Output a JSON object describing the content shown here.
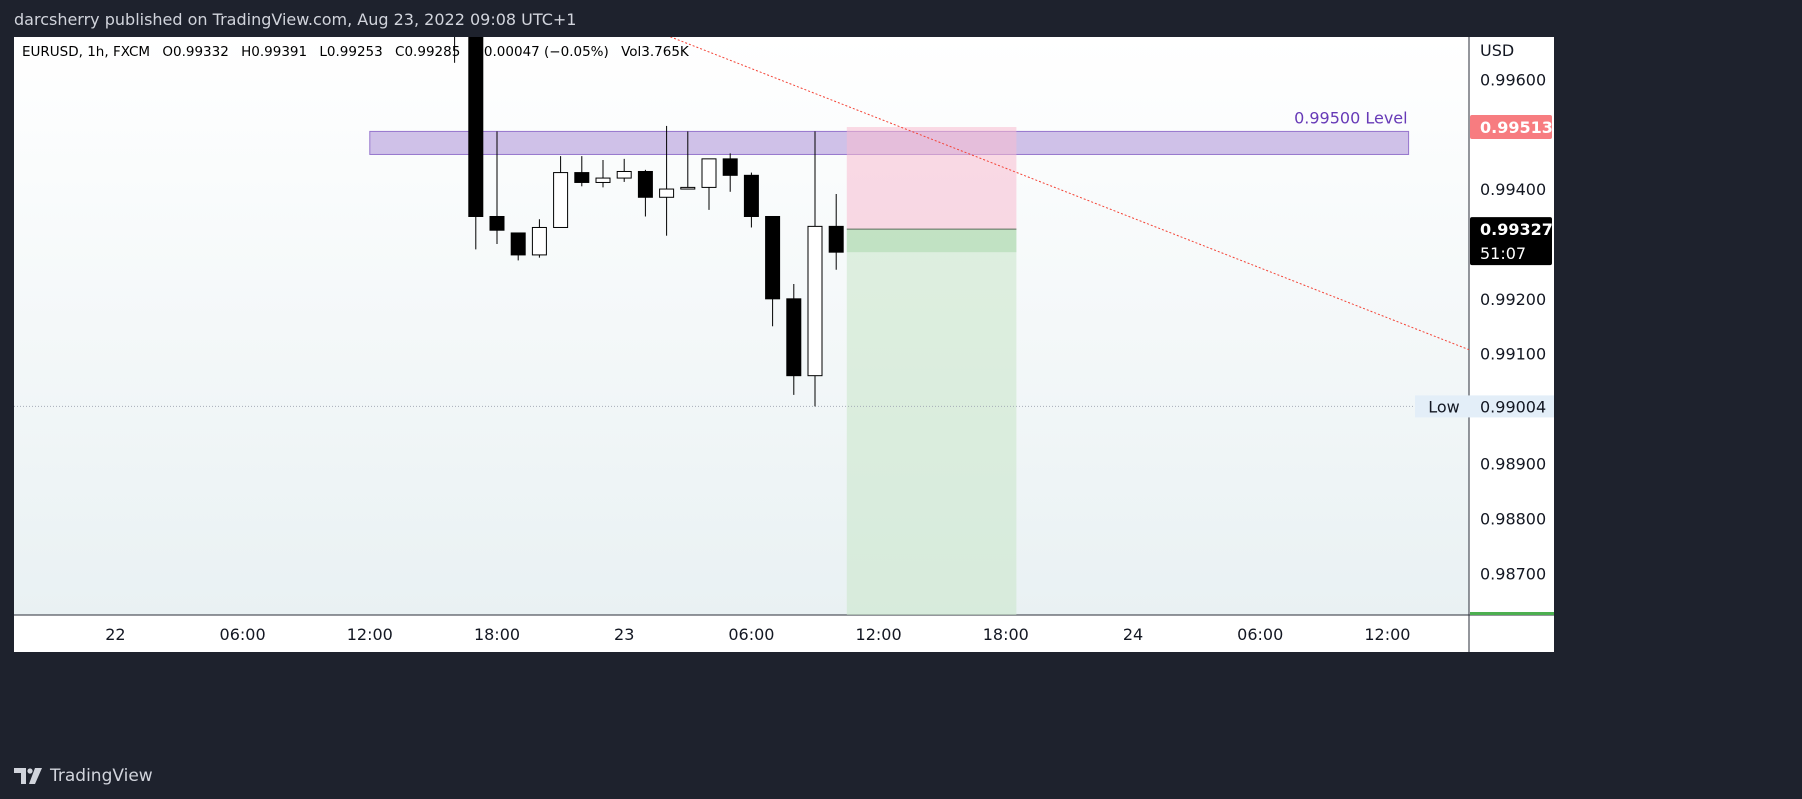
{
  "header": {
    "published_line": "darcsherry published on TradingView.com, Aug 23, 2022 09:08 UTC+1"
  },
  "footer": {
    "brand": "TradingView",
    "logo_icon": "tradingview-logo-icon"
  },
  "legend": {
    "symbol": "EURUSD, 1h, FXCM",
    "open": "O0.99332",
    "high": "H0.99391",
    "low": "L0.99253",
    "close": "C0.99285",
    "change": "−0.00047 (−0.05%)",
    "volume": "Vol3.765K"
  },
  "colors": {
    "background_dark": "#1e222d",
    "candle": "#000000",
    "level_zone": "#b39ddb",
    "level_text": "#673ab7",
    "stop_zone": "#f8bbd0",
    "target_zone": "#c8e6c9",
    "price_badge_red": "#f77c80",
    "price_badge_dark": "#000000",
    "trendline": "#f44336"
  },
  "chart_data": {
    "type": "candlestick",
    "symbol": "EURUSD",
    "interval": "1h",
    "currency": "USD",
    "ylim": [
      0.98624,
      0.99677
    ],
    "y_ticks": [
      "0.99600",
      "0.99400",
      "0.99200",
      "0.99100",
      "0.98900",
      "0.98800",
      "0.98700"
    ],
    "x_ticks": [
      {
        "label": "22",
        "t": -22
      },
      {
        "label": "06:00",
        "t": -16
      },
      {
        "label": "12:00",
        "t": -10
      },
      {
        "label": "18:00",
        "t": -4
      },
      {
        "label": "23",
        "t": 2
      },
      {
        "label": "06:00",
        "t": 8
      },
      {
        "label": "12:00",
        "t": 14
      },
      {
        "label": "18:00",
        "t": 20
      },
      {
        "label": "24",
        "t": 26
      },
      {
        "label": "06:00",
        "t": 32
      },
      {
        "label": "12:00",
        "t": 38
      }
    ],
    "candles": [
      {
        "t": -6,
        "o": 0.9972,
        "h": 0.99745,
        "l": 0.9963,
        "c": 0.9969
      },
      {
        "t": -5,
        "o": 0.9969,
        "h": 0.997,
        "l": 0.9929,
        "c": 0.9935
      },
      {
        "t": -4,
        "o": 0.9935,
        "h": 0.99505,
        "l": 0.993,
        "c": 0.99325
      },
      {
        "t": -3,
        "o": 0.9932,
        "h": 0.9932,
        "l": 0.9927,
        "c": 0.9928
      },
      {
        "t": -2,
        "o": 0.9928,
        "h": 0.99345,
        "l": 0.99275,
        "c": 0.9933
      },
      {
        "t": -1,
        "o": 0.9933,
        "h": 0.9946,
        "l": 0.9933,
        "c": 0.9943
      },
      {
        "t": 0,
        "o": 0.9943,
        "h": 0.9946,
        "l": 0.99405,
        "c": 0.99412
      },
      {
        "t": 1,
        "o": 0.99412,
        "h": 0.99453,
        "l": 0.99403,
        "c": 0.9942
      },
      {
        "t": 2,
        "o": 0.9942,
        "h": 0.99455,
        "l": 0.99413,
        "c": 0.99432
      },
      {
        "t": 3,
        "o": 0.99432,
        "h": 0.99435,
        "l": 0.9935,
        "c": 0.99385
      },
      {
        "t": 4,
        "o": 0.99385,
        "h": 0.99515,
        "l": 0.99315,
        "c": 0.994
      },
      {
        "t": 5,
        "o": 0.994,
        "h": 0.99505,
        "l": 0.994,
        "c": 0.99403
      },
      {
        "t": 6,
        "o": 0.99403,
        "h": 0.99455,
        "l": 0.99362,
        "c": 0.99455
      },
      {
        "t": 7,
        "o": 0.99455,
        "h": 0.99465,
        "l": 0.99395,
        "c": 0.99425
      },
      {
        "t": 8,
        "o": 0.99425,
        "h": 0.9943,
        "l": 0.9933,
        "c": 0.9935
      },
      {
        "t": 9,
        "o": 0.9935,
        "h": 0.9935,
        "l": 0.9915,
        "c": 0.992
      },
      {
        "t": 10,
        "o": 0.992,
        "h": 0.99227,
        "l": 0.99025,
        "c": 0.9906
      },
      {
        "t": 11,
        "o": 0.9906,
        "h": 0.99505,
        "l": 0.99004,
        "c": 0.99332
      },
      {
        "t": 12,
        "o": 0.99332,
        "h": 0.99391,
        "l": 0.99253,
        "c": 0.99285
      }
    ],
    "annotations": {
      "level": {
        "label": "0.99500 Level",
        "from_t": -10,
        "to_t": 39,
        "bottom": 0.99463,
        "top": 0.99505
      },
      "short_position": {
        "from_t": 12.5,
        "to_t": 20.5,
        "entry": 0.99327,
        "stop": 0.99513,
        "target": 0.98624,
        "entry_band_low": 0.99285
      },
      "trendline": {
        "t1": 4,
        "y1": 0.9968,
        "t2": 42,
        "y2": 0.99105
      },
      "low_line": {
        "label": "Low",
        "price": "0.99004",
        "value": 0.99004
      }
    },
    "price_badges": [
      {
        "price": "0.99513",
        "value": 0.99513,
        "style": "red"
      },
      {
        "price": "0.99327",
        "value": 0.99327,
        "style": "dark",
        "countdown": "51:07"
      }
    ]
  }
}
